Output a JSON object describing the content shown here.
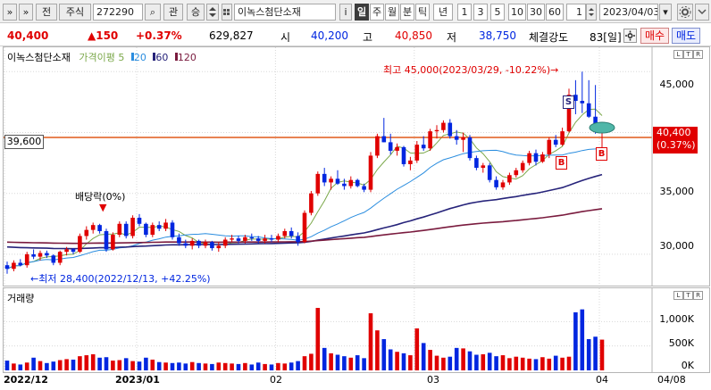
{
  "toolbar": {
    "nav_label": "»",
    "nav2_label": "»",
    "jeon_label": "전",
    "market_label": "주식",
    "code_value": "272290",
    "search_label": "⌕",
    "kwan_label": "관",
    "seung_label": "승",
    "name_value": "이녹스첨단소재",
    "info_label": "i",
    "periods": [
      "일",
      "주",
      "월",
      "분",
      "틱",
      "년"
    ],
    "active_period": "일",
    "minutes": [
      "1",
      "3",
      "5",
      "10",
      "30",
      "60"
    ],
    "count_value": "1",
    "date_value": "2023/04/03",
    "calendar_label": "▾"
  },
  "quote": {
    "price": "40,400",
    "change": "▲150",
    "change_pct": "+0.37%",
    "volume": "629,827",
    "open_label": "시",
    "open": "40,200",
    "high_label": "고",
    "high": "40,850",
    "low_label": "저",
    "low": "38,750",
    "strength_label": "체결강도",
    "strength": "83[일]",
    "buy_label": "매수",
    "sell_label": "매도"
  },
  "price_panel": {
    "title": "이녹스첨단소재",
    "legend_label": "가격이평",
    "ma_values": [
      "5",
      "20",
      "60",
      "120"
    ],
    "ma_colors": [
      "#7ba84a",
      "#2a8ddf",
      "#26237a",
      "#7a1b3e"
    ],
    "hline_value": "39,600",
    "current_value": "40,400",
    "current_pct": "(0.37%)",
    "high_note": "최고 45,000(2023/03/29, -10.22%)→",
    "low_note": "←최저 28,400(2022/12/13, +42.25%)",
    "dividend_note": "배당락(0%)",
    "signal_sell": "S",
    "signal_buy": "B",
    "ylabels": [
      "45,000",
      "40,000",
      "35,000",
      "30,000"
    ],
    "corner_buttons": [
      "L",
      "T",
      "R"
    ]
  },
  "volume_panel": {
    "title": "거래량",
    "ylabels": [
      "1,000K",
      "500K",
      "0K"
    ],
    "corner_buttons": [
      "L",
      "T",
      "R"
    ]
  },
  "xaxis": {
    "labels": [
      "2022/12",
      "2023/01",
      "02",
      "03",
      "04",
      "04/08"
    ]
  },
  "colors": {
    "up": "#e00000",
    "down": "#0026e0",
    "hline": "#e05a1a"
  },
  "chart_data": {
    "type": "candlestick",
    "candles_ohlc": [
      [
        29100,
        29400,
        28400,
        28800
      ],
      [
        28800,
        29500,
        28600,
        29300
      ],
      [
        29300,
        29600,
        29000,
        29100
      ],
      [
        29100,
        30200,
        28900,
        30000
      ],
      [
        30000,
        30400,
        29600,
        29800
      ],
      [
        29800,
        30300,
        29500,
        30100
      ],
      [
        30100,
        30300,
        29700,
        29900
      ],
      [
        29900,
        30000,
        29100,
        29300
      ],
      [
        29300,
        30300,
        29100,
        30200
      ],
      [
        30200,
        30600,
        29900,
        30400
      ],
      [
        30400,
        30500,
        30000,
        30200
      ],
      [
        30200,
        31700,
        30100,
        31500
      ],
      [
        31500,
        32300,
        31200,
        32000
      ],
      [
        32000,
        32600,
        31700,
        32400
      ],
      [
        32400,
        32500,
        31700,
        31900
      ],
      [
        31900,
        32100,
        30200,
        30400
      ],
      [
        30400,
        31800,
        30300,
        31600
      ],
      [
        31600,
        32700,
        31400,
        32500
      ],
      [
        32500,
        32700,
        31300,
        31500
      ],
      [
        31500,
        33200,
        31300,
        33000
      ],
      [
        33000,
        33300,
        32300,
        32500
      ],
      [
        32500,
        32600,
        31400,
        31600
      ],
      [
        31600,
        32600,
        31400,
        32400
      ],
      [
        32400,
        32700,
        31900,
        32100
      ],
      [
        32100,
        32900,
        31900,
        32600
      ],
      [
        32600,
        32800,
        31200,
        31400
      ],
      [
        31400,
        31700,
        30700,
        30900
      ],
      [
        30900,
        31200,
        30500,
        30700
      ],
      [
        30700,
        31300,
        30400,
        31100
      ],
      [
        31100,
        31200,
        30500,
        30700
      ],
      [
        30700,
        31200,
        30500,
        31000
      ],
      [
        31000,
        31100,
        30300,
        30500
      ],
      [
        30500,
        31000,
        30200,
        30700
      ],
      [
        30700,
        31400,
        30500,
        31200
      ],
      [
        31200,
        31600,
        31000,
        31300
      ],
      [
        31300,
        31500,
        30900,
        31100
      ],
      [
        31100,
        31600,
        30900,
        31400
      ],
      [
        31400,
        31700,
        31100,
        31300
      ],
      [
        31300,
        31500,
        30900,
        31100
      ],
      [
        31100,
        31600,
        30900,
        31300
      ],
      [
        31300,
        31600,
        31000,
        31200
      ],
      [
        31200,
        31700,
        31000,
        31500
      ],
      [
        31500,
        32100,
        31300,
        31900
      ],
      [
        31900,
        32200,
        31300,
        31500
      ],
      [
        31500,
        31800,
        30700,
        31000
      ],
      [
        31000,
        33600,
        30900,
        33400
      ],
      [
        33400,
        35200,
        33200,
        35000
      ],
      [
        35000,
        36800,
        34800,
        36600
      ],
      [
        36600,
        37100,
        35600,
        35900
      ],
      [
        35900,
        36400,
        35300,
        36200
      ],
      [
        36200,
        36900,
        35700,
        35800
      ],
      [
        35800,
        36200,
        35300,
        35600
      ],
      [
        35600,
        36400,
        35400,
        36100
      ],
      [
        36100,
        36200,
        35500,
        35600
      ],
      [
        35600,
        35800,
        35100,
        35300
      ],
      [
        35300,
        38400,
        35100,
        38100
      ],
      [
        38100,
        39900,
        37900,
        39700
      ],
      [
        39700,
        41200,
        39200,
        39200
      ],
      [
        39200,
        39900,
        38200,
        38500
      ],
      [
        38500,
        39100,
        38100,
        38800
      ],
      [
        38800,
        38900,
        37200,
        37400
      ],
      [
        37400,
        38000,
        36900,
        37700
      ],
      [
        37700,
        39300,
        37500,
        39000
      ],
      [
        39000,
        39700,
        38500,
        38700
      ],
      [
        38700,
        40300,
        38500,
        40100
      ],
      [
        40100,
        40600,
        39500,
        40200
      ],
      [
        40200,
        41000,
        40000,
        40800
      ],
      [
        40800,
        41100,
        39500,
        39700
      ],
      [
        39700,
        40200,
        39000,
        39400
      ],
      [
        39400,
        40000,
        38400,
        39600
      ],
      [
        39600,
        39800,
        37700,
        37900
      ],
      [
        37900,
        38100,
        36900,
        37100
      ],
      [
        37100,
        37500,
        36700,
        37300
      ],
      [
        37300,
        37500,
        35900,
        36100
      ],
      [
        36100,
        36400,
        35300,
        35500
      ],
      [
        35500,
        36100,
        35300,
        35900
      ],
      [
        35900,
        36700,
        35700,
        36500
      ],
      [
        36500,
        37100,
        36300,
        36900
      ],
      [
        36900,
        37700,
        36700,
        37500
      ],
      [
        37500,
        38500,
        37300,
        38300
      ],
      [
        38300,
        38600,
        37300,
        37600
      ],
      [
        37600,
        38400,
        37500,
        38200
      ],
      [
        38200,
        39600,
        37900,
        39400
      ],
      [
        39400,
        39800,
        38800,
        39000
      ],
      [
        39000,
        40400,
        38900,
        40100
      ],
      [
        40100,
        43600,
        40000,
        43100
      ],
      [
        43100,
        44300,
        41500,
        42600
      ],
      [
        42600,
        45000,
        41600,
        42400
      ],
      [
        42400,
        44300,
        41200,
        41300
      ],
      [
        41300,
        43900,
        39900,
        40250
      ],
      [
        40200,
        40850,
        38750,
        40400
      ]
    ],
    "volume_k": [
      200,
      140,
      120,
      160,
      260,
      190,
      150,
      180,
      210,
      230,
      220,
      290,
      310,
      330,
      260,
      270,
      200,
      210,
      250,
      190,
      180,
      260,
      220,
      170,
      160,
      150,
      160,
      140,
      170,
      150,
      140,
      130,
      160,
      150,
      140,
      130,
      150,
      120,
      160,
      130,
      120,
      150,
      140,
      160,
      190,
      290,
      340,
      1280,
      460,
      350,
      320,
      290,
      260,
      310,
      250,
      1170,
      820,
      640,
      430,
      380,
      350,
      310,
      860,
      560,
      420,
      300,
      260,
      280,
      460,
      450,
      390,
      320,
      330,
      360,
      290,
      310,
      250,
      280,
      260,
      240,
      230,
      270,
      240,
      300,
      260,
      280,
      1190,
      1250,
      640,
      690,
      629.8
    ],
    "x_ticks": [
      "2022/12",
      "2023/01",
      "02",
      "03",
      "04"
    ],
    "ylim": [
      27500,
      47000
    ],
    "volume_ylim": [
      0,
      1500
    ],
    "moving_averages": [
      "5",
      "20",
      "60",
      "120"
    ],
    "reference_line": 39600,
    "current_price": 40400,
    "high": 45000,
    "low": 28400
  }
}
